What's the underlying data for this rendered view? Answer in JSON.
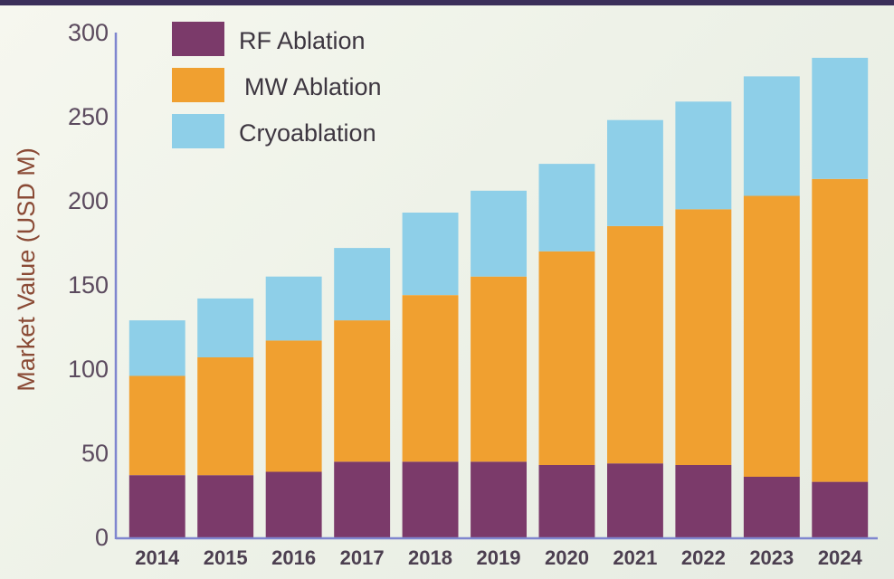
{
  "chart_data": {
    "type": "bar",
    "stacked": true,
    "categories": [
      "2014",
      "2015",
      "2016",
      "2017",
      "2018",
      "2019",
      "2020",
      "2021",
      "2022",
      "2023",
      "2024"
    ],
    "series": [
      {
        "name": "RF Ablation",
        "color": "#7b3a6a",
        "values": [
          37,
          37,
          39,
          45,
          45,
          45,
          43,
          44,
          43,
          36,
          33
        ]
      },
      {
        "name": "MW Ablation",
        "color": "#f0a030",
        "values": [
          59,
          70,
          78,
          84,
          99,
          110,
          127,
          141,
          152,
          167,
          180
        ]
      },
      {
        "name": "Cryoablation",
        "color": "#8ecfe8",
        "values": [
          33,
          35,
          38,
          43,
          49,
          51,
          52,
          63,
          64,
          71,
          72
        ]
      }
    ],
    "ylabel": "Market Value (USD M)",
    "xlabel": "",
    "ylim": [
      0,
      300
    ],
    "yticks": [
      0,
      50,
      100,
      150,
      200,
      250,
      300
    ],
    "grid": false,
    "legend_position": "top-left"
  }
}
